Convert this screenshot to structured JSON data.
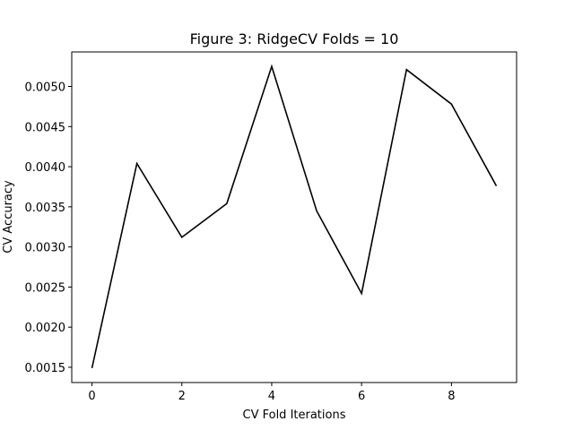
{
  "chart_data": {
    "type": "line",
    "title": "Figure 3: RidgeCV Folds = 10",
    "xlabel": "CV Fold Iterations",
    "ylabel": "CV Accuracy",
    "x": [
      0,
      1,
      2,
      3,
      4,
      5,
      6,
      7,
      8,
      9
    ],
    "series": [
      {
        "values": [
          0.00149,
          0.00404,
          0.00312,
          0.00354,
          0.00525,
          0.00345,
          0.00242,
          0.00521,
          0.00478,
          0.00376
        ],
        "color": "#000000"
      }
    ],
    "xlim": [
      -0.45,
      9.45
    ],
    "ylim": [
      0.00131,
      0.00543
    ],
    "xticks": [
      0,
      2,
      4,
      6,
      8
    ],
    "xtick_labels": [
      "0",
      "2",
      "4",
      "6",
      "8"
    ],
    "yticks": [
      0.0015,
      0.002,
      0.0025,
      0.003,
      0.0035,
      0.004,
      0.0045,
      0.005
    ],
    "ytick_labels": [
      "0.0015",
      "0.0020",
      "0.0025",
      "0.0030",
      "0.0035",
      "0.0040",
      "0.0045",
      "0.0050"
    ],
    "grid": false,
    "legend": "none"
  }
}
